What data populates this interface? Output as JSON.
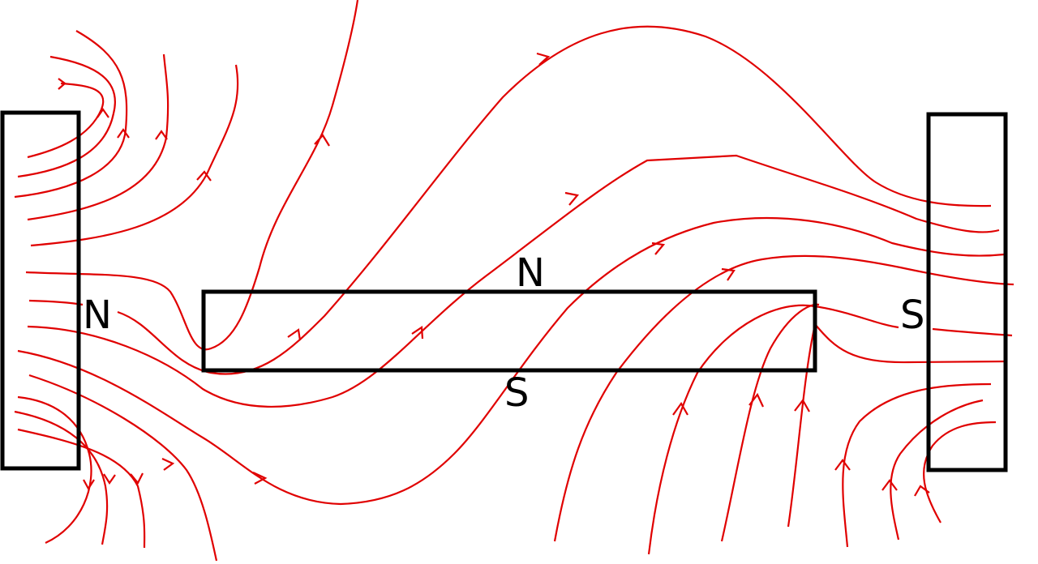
{
  "labels": {
    "left_magnet": "N",
    "bar_top": "N",
    "bar_bottom": "S",
    "right_magnet": "S"
  }
}
